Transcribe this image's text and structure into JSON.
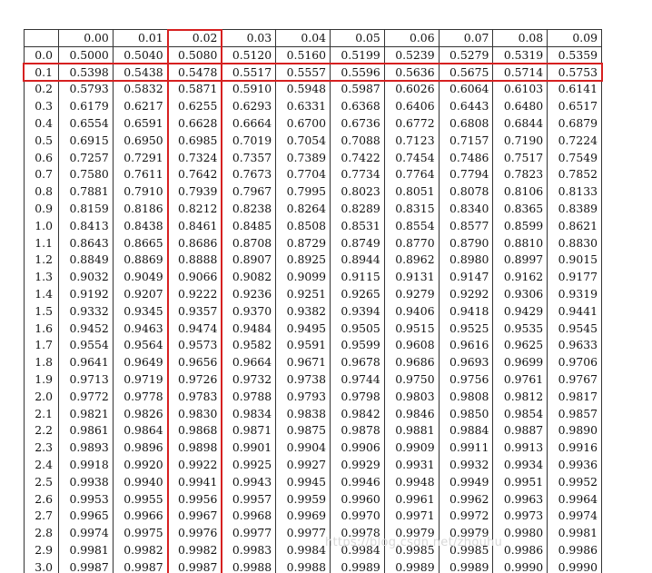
{
  "table": {
    "columns": [
      "0.00",
      "0.01",
      "0.02",
      "0.03",
      "0.04",
      "0.05",
      "0.06",
      "0.07",
      "0.08",
      "0.09"
    ],
    "rows": [
      {
        "z": "0.0",
        "values": [
          "0.5000",
          "0.5040",
          "0.5080",
          "0.5120",
          "0.5160",
          "0.5199",
          "0.5239",
          "0.5279",
          "0.5319",
          "0.5359"
        ]
      },
      {
        "z": "0.1",
        "values": [
          "0.5398",
          "0.5438",
          "0.5478",
          "0.5517",
          "0.5557",
          "0.5596",
          "0.5636",
          "0.5675",
          "0.5714",
          "0.5753"
        ]
      },
      {
        "z": "0.2",
        "values": [
          "0.5793",
          "0.5832",
          "0.5871",
          "0.5910",
          "0.5948",
          "0.5987",
          "0.6026",
          "0.6064",
          "0.6103",
          "0.6141"
        ]
      },
      {
        "z": "0.3",
        "values": [
          "0.6179",
          "0.6217",
          "0.6255",
          "0.6293",
          "0.6331",
          "0.6368",
          "0.6406",
          "0.6443",
          "0.6480",
          "0.6517"
        ]
      },
      {
        "z": "0.4",
        "values": [
          "0.6554",
          "0.6591",
          "0.6628",
          "0.6664",
          "0.6700",
          "0.6736",
          "0.6772",
          "0.6808",
          "0.6844",
          "0.6879"
        ]
      },
      {
        "z": "0.5",
        "values": [
          "0.6915",
          "0.6950",
          "0.6985",
          "0.7019",
          "0.7054",
          "0.7088",
          "0.7123",
          "0.7157",
          "0.7190",
          "0.7224"
        ]
      },
      {
        "z": "0.6",
        "values": [
          "0.7257",
          "0.7291",
          "0.7324",
          "0.7357",
          "0.7389",
          "0.7422",
          "0.7454",
          "0.7486",
          "0.7517",
          "0.7549"
        ]
      },
      {
        "z": "0.7",
        "values": [
          "0.7580",
          "0.7611",
          "0.7642",
          "0.7673",
          "0.7704",
          "0.7734",
          "0.7764",
          "0.7794",
          "0.7823",
          "0.7852"
        ]
      },
      {
        "z": "0.8",
        "values": [
          "0.7881",
          "0.7910",
          "0.7939",
          "0.7967",
          "0.7995",
          "0.8023",
          "0.8051",
          "0.8078",
          "0.8106",
          "0.8133"
        ]
      },
      {
        "z": "0.9",
        "values": [
          "0.8159",
          "0.8186",
          "0.8212",
          "0.8238",
          "0.8264",
          "0.8289",
          "0.8315",
          "0.8340",
          "0.8365",
          "0.8389"
        ]
      },
      {
        "z": "1.0",
        "values": [
          "0.8413",
          "0.8438",
          "0.8461",
          "0.8485",
          "0.8508",
          "0.8531",
          "0.8554",
          "0.8577",
          "0.8599",
          "0.8621"
        ]
      },
      {
        "z": "1.1",
        "values": [
          "0.8643",
          "0.8665",
          "0.8686",
          "0.8708",
          "0.8729",
          "0.8749",
          "0.8770",
          "0.8790",
          "0.8810",
          "0.8830"
        ]
      },
      {
        "z": "1.2",
        "values": [
          "0.8849",
          "0.8869",
          "0.8888",
          "0.8907",
          "0.8925",
          "0.8944",
          "0.8962",
          "0.8980",
          "0.8997",
          "0.9015"
        ]
      },
      {
        "z": "1.3",
        "values": [
          "0.9032",
          "0.9049",
          "0.9066",
          "0.9082",
          "0.9099",
          "0.9115",
          "0.9131",
          "0.9147",
          "0.9162",
          "0.9177"
        ]
      },
      {
        "z": "1.4",
        "values": [
          "0.9192",
          "0.9207",
          "0.9222",
          "0.9236",
          "0.9251",
          "0.9265",
          "0.9279",
          "0.9292",
          "0.9306",
          "0.9319"
        ]
      },
      {
        "z": "1.5",
        "values": [
          "0.9332",
          "0.9345",
          "0.9357",
          "0.9370",
          "0.9382",
          "0.9394",
          "0.9406",
          "0.9418",
          "0.9429",
          "0.9441"
        ]
      },
      {
        "z": "1.6",
        "values": [
          "0.9452",
          "0.9463",
          "0.9474",
          "0.9484",
          "0.9495",
          "0.9505",
          "0.9515",
          "0.9525",
          "0.9535",
          "0.9545"
        ]
      },
      {
        "z": "1.7",
        "values": [
          "0.9554",
          "0.9564",
          "0.9573",
          "0.9582",
          "0.9591",
          "0.9599",
          "0.9608",
          "0.9616",
          "0.9625",
          "0.9633"
        ]
      },
      {
        "z": "1.8",
        "values": [
          "0.9641",
          "0.9649",
          "0.9656",
          "0.9664",
          "0.9671",
          "0.9678",
          "0.9686",
          "0.9693",
          "0.9699",
          "0.9706"
        ]
      },
      {
        "z": "1.9",
        "values": [
          "0.9713",
          "0.9719",
          "0.9726",
          "0.9732",
          "0.9738",
          "0.9744",
          "0.9750",
          "0.9756",
          "0.9761",
          "0.9767"
        ]
      },
      {
        "z": "2.0",
        "values": [
          "0.9772",
          "0.9778",
          "0.9783",
          "0.9788",
          "0.9793",
          "0.9798",
          "0.9803",
          "0.9808",
          "0.9812",
          "0.9817"
        ]
      },
      {
        "z": "2.1",
        "values": [
          "0.9821",
          "0.9826",
          "0.9830",
          "0.9834",
          "0.9838",
          "0.9842",
          "0.9846",
          "0.9850",
          "0.9854",
          "0.9857"
        ]
      },
      {
        "z": "2.2",
        "values": [
          "0.9861",
          "0.9864",
          "0.9868",
          "0.9871",
          "0.9875",
          "0.9878",
          "0.9881",
          "0.9884",
          "0.9887",
          "0.9890"
        ]
      },
      {
        "z": "2.3",
        "values": [
          "0.9893",
          "0.9896",
          "0.9898",
          "0.9901",
          "0.9904",
          "0.9906",
          "0.9909",
          "0.9911",
          "0.9913",
          "0.9916"
        ]
      },
      {
        "z": "2.4",
        "values": [
          "0.9918",
          "0.9920",
          "0.9922",
          "0.9925",
          "0.9927",
          "0.9929",
          "0.9931",
          "0.9932",
          "0.9934",
          "0.9936"
        ]
      },
      {
        "z": "2.5",
        "values": [
          "0.9938",
          "0.9940",
          "0.9941",
          "0.9943",
          "0.9945",
          "0.9946",
          "0.9948",
          "0.9949",
          "0.9951",
          "0.9952"
        ]
      },
      {
        "z": "2.6",
        "values": [
          "0.9953",
          "0.9955",
          "0.9956",
          "0.9957",
          "0.9959",
          "0.9960",
          "0.9961",
          "0.9962",
          "0.9963",
          "0.9964"
        ]
      },
      {
        "z": "2.7",
        "values": [
          "0.9965",
          "0.9966",
          "0.9967",
          "0.9968",
          "0.9969",
          "0.9970",
          "0.9971",
          "0.9972",
          "0.9973",
          "0.9974"
        ]
      },
      {
        "z": "2.8",
        "values": [
          "0.9974",
          "0.9975",
          "0.9976",
          "0.9977",
          "0.9977",
          "0.9978",
          "0.9979",
          "0.9979",
          "0.9980",
          "0.9981"
        ]
      },
      {
        "z": "2.9",
        "values": [
          "0.9981",
          "0.9982",
          "0.9982",
          "0.9983",
          "0.9984",
          "0.9984",
          "0.9985",
          "0.9985",
          "0.9986",
          "0.9986"
        ]
      },
      {
        "z": "3.0",
        "values": [
          "0.9987",
          "0.9987",
          "0.9987",
          "0.9988",
          "0.9988",
          "0.9989",
          "0.9989",
          "0.9989",
          "0.9990",
          "0.9990"
        ]
      }
    ]
  },
  "highlight": {
    "row": "0.1",
    "column": "0.02",
    "color": "#d62020"
  },
  "watermark": {
    "text": "https://blog.csdn.net/zhouhu"
  }
}
